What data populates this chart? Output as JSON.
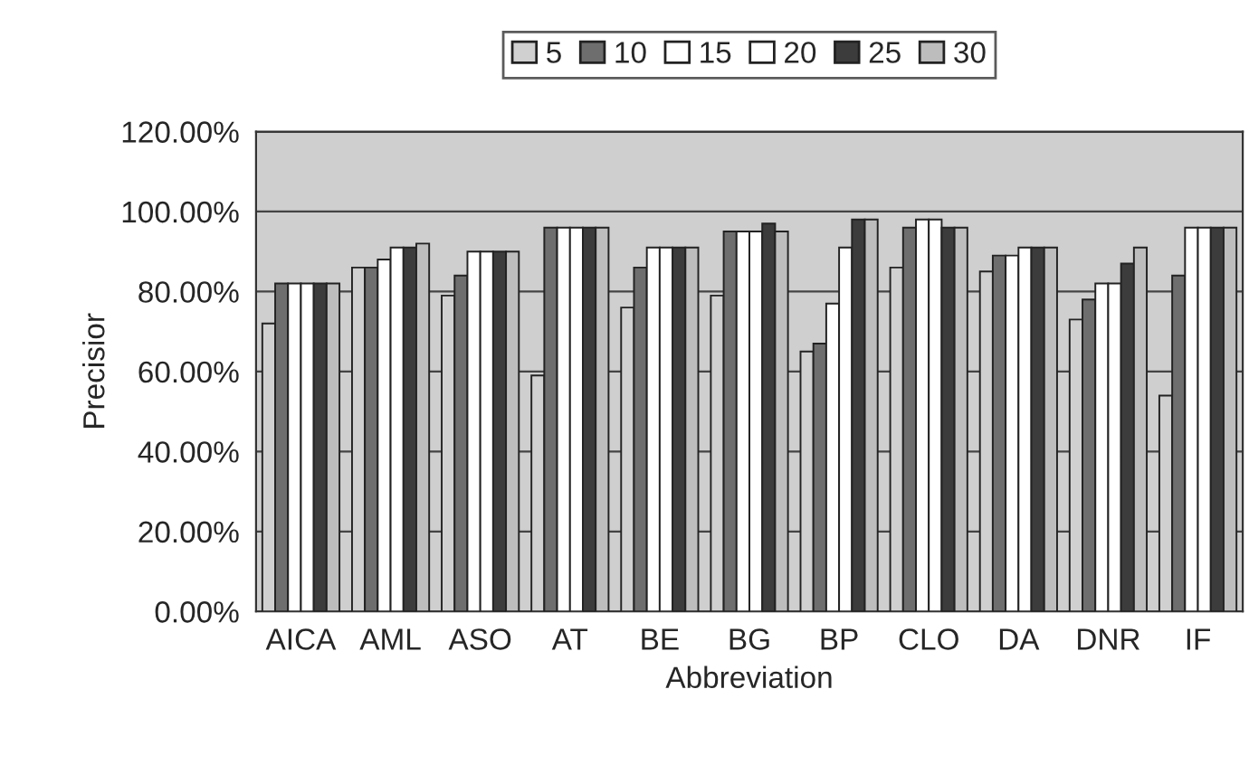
{
  "chart_data": {
    "type": "bar",
    "xlabel": "Abbreviation",
    "ylabel": "Precisior",
    "categories": [
      "AICA",
      "AML",
      "ASO",
      "AT",
      "BE",
      "BG",
      "BP",
      "CLO",
      "DA",
      "DNR",
      "IF"
    ],
    "series": [
      {
        "name": "5",
        "color": "#d0d0d0",
        "values": [
          72,
          86,
          79,
          59,
          76,
          79,
          65,
          86,
          85,
          73,
          54
        ]
      },
      {
        "name": "10",
        "color": "#6e6e6e",
        "values": [
          82,
          86,
          84,
          96,
          86,
          95,
          67,
          96,
          89,
          78,
          84
        ]
      },
      {
        "name": "15",
        "color": "#ffffff",
        "values": [
          82,
          88,
          90,
          96,
          91,
          95,
          77,
          98,
          89,
          82,
          96
        ]
      },
      {
        "name": "20",
        "color": "#ffffff",
        "values": [
          82,
          91,
          90,
          96,
          91,
          95,
          91,
          98,
          91,
          82,
          96
        ]
      },
      {
        "name": "25",
        "color": "#3c3c3c",
        "values": [
          82,
          91,
          90,
          96,
          91,
          97,
          98,
          96,
          91,
          87,
          96
        ]
      },
      {
        "name": "30",
        "color": "#bdbdbd",
        "values": [
          82,
          92,
          90,
          96,
          91,
          95,
          98,
          96,
          91,
          91,
          96
        ]
      }
    ],
    "ylim": [
      0,
      120
    ],
    "yticks": [
      {
        "value": 0,
        "label": "0.00%"
      },
      {
        "value": 20,
        "label": "20.00%"
      },
      {
        "value": 40,
        "label": "40.00%"
      },
      {
        "value": 60,
        "label": "60.00%"
      },
      {
        "value": 80,
        "label": "80.00%"
      },
      {
        "value": 100,
        "label": "100.00%"
      },
      {
        "value": 120,
        "label": "120.00%"
      }
    ],
    "grid": "y",
    "legend": "top"
  }
}
